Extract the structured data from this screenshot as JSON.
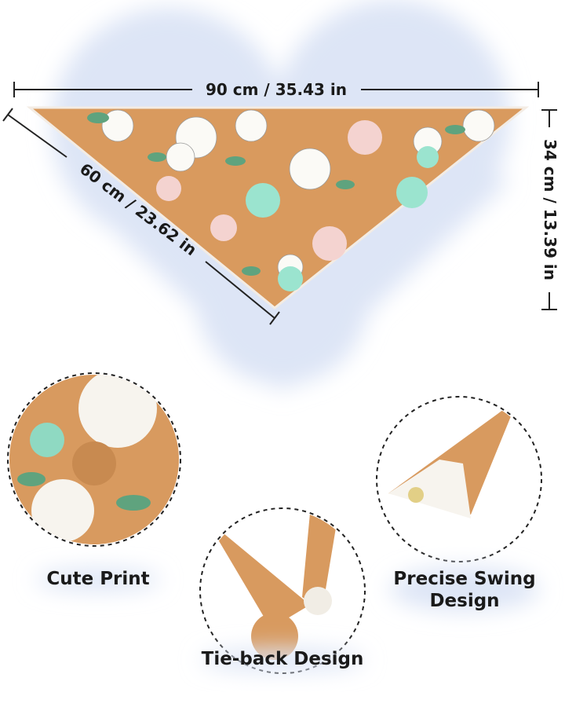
{
  "dimensions": {
    "width": "90 cm / 35.43 in",
    "side": "60 cm / 23.62 in",
    "height": "34 cm / 13.39 in"
  },
  "features": [
    {
      "label": "Cute Print"
    },
    {
      "label": "Tie-back Design"
    },
    {
      "lines": [
        "Precise Swing",
        "Design"
      ]
    }
  ]
}
